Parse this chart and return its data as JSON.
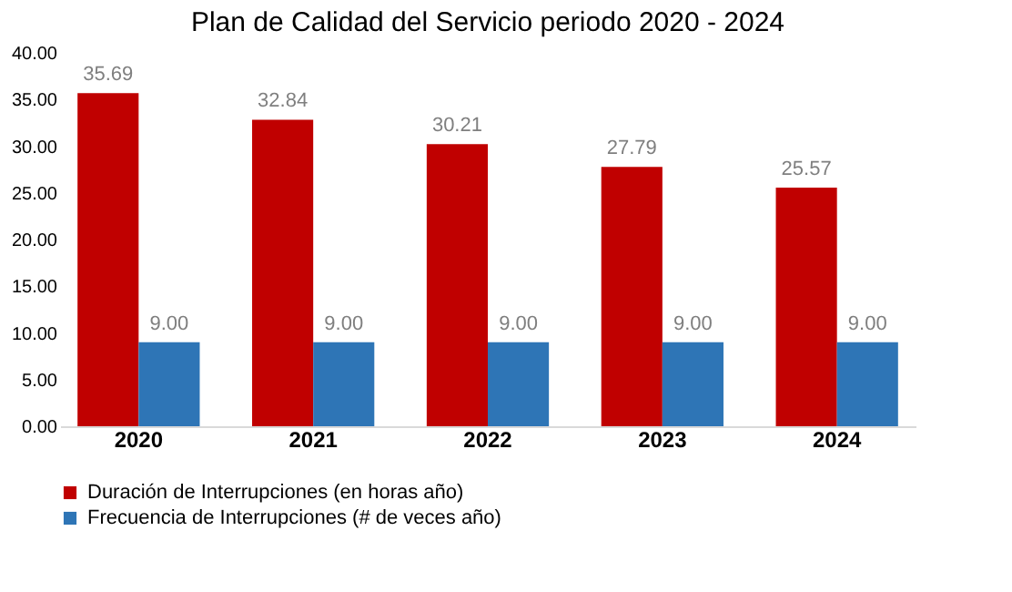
{
  "chart_data": {
    "type": "bar",
    "title": "Plan de Calidad del Servicio periodo 2020 - 2024",
    "categories": [
      "2020",
      "2021",
      "2022",
      "2023",
      "2024"
    ],
    "series": [
      {
        "name": "Duración de Interrupciones (en horas año)",
        "color": "#c00000",
        "values": [
          35.69,
          32.84,
          30.21,
          27.79,
          25.57
        ],
        "value_labels": [
          "35.69",
          "32.84",
          "30.21",
          "27.79",
          "25.57"
        ]
      },
      {
        "name": "Frecuencia de Interrupciones (# de veces año)",
        "color": "#2e75b6",
        "values": [
          9,
          9,
          9,
          9,
          9
        ],
        "value_labels": [
          "9.00",
          "9.00",
          "9.00",
          "9.00",
          "9.00"
        ]
      }
    ],
    "ylim": [
      0,
      40
    ],
    "yticks": [
      {
        "value": 0,
        "label": "0.00"
      },
      {
        "value": 5,
        "label": "5.00"
      },
      {
        "value": 10,
        "label": "10.00"
      },
      {
        "value": 15,
        "label": "15.00"
      },
      {
        "value": 20,
        "label": "20.00"
      },
      {
        "value": 25,
        "label": "25.00"
      },
      {
        "value": 30,
        "label": "30.00"
      },
      {
        "value": 35,
        "label": "35.00"
      },
      {
        "value": 40,
        "label": "40.00"
      }
    ],
    "grid": false,
    "legend": "bottom"
  }
}
